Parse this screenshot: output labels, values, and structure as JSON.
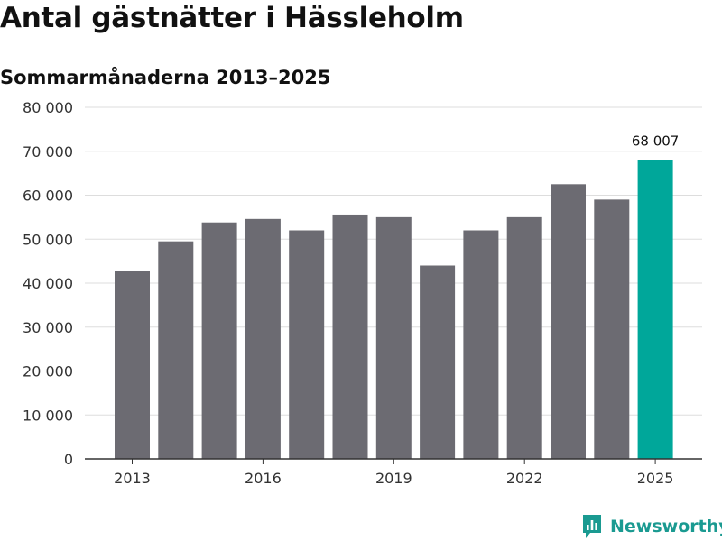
{
  "chart_data": {
    "type": "bar",
    "title": "Antal gästnätter i Hässleholm",
    "subtitle": "Sommarmånaderna 2013–2025",
    "categories": [
      "2013",
      "2014",
      "2015",
      "2016",
      "2017",
      "2018",
      "2019",
      "2020",
      "2021",
      "2022",
      "2023",
      "2024",
      "2025"
    ],
    "values": [
      42700,
      49500,
      53800,
      54600,
      52000,
      55600,
      55000,
      44000,
      52000,
      55000,
      62500,
      59000,
      68007
    ],
    "highlight_index": 12,
    "highlight_label": "68 007",
    "x_tick_labels": [
      "2013",
      "2016",
      "2019",
      "2022",
      "2025"
    ],
    "y_ticks": [
      {
        "value": 0,
        "label": "0"
      },
      {
        "value": 10000,
        "label": "10 000"
      },
      {
        "value": 20000,
        "label": "20 000"
      },
      {
        "value": 30000,
        "label": "30 000"
      },
      {
        "value": 40000,
        "label": "40 000"
      },
      {
        "value": 50000,
        "label": "50 000"
      },
      {
        "value": 60000,
        "label": "60 000"
      },
      {
        "value": 70000,
        "label": "70 000"
      },
      {
        "value": 80000,
        "label": "80 000"
      }
    ],
    "ylim": [
      0,
      80000
    ],
    "xlabel": "",
    "ylabel": "",
    "grid": true,
    "colors": {
      "bar": "#6c6b72",
      "highlight": "#00a79a",
      "grid": "#dddddd",
      "axis": "#333333"
    }
  },
  "brand": {
    "name": "Newsworthy",
    "color": "#1a9a91",
    "icon": "newsworthy-logo-icon"
  }
}
